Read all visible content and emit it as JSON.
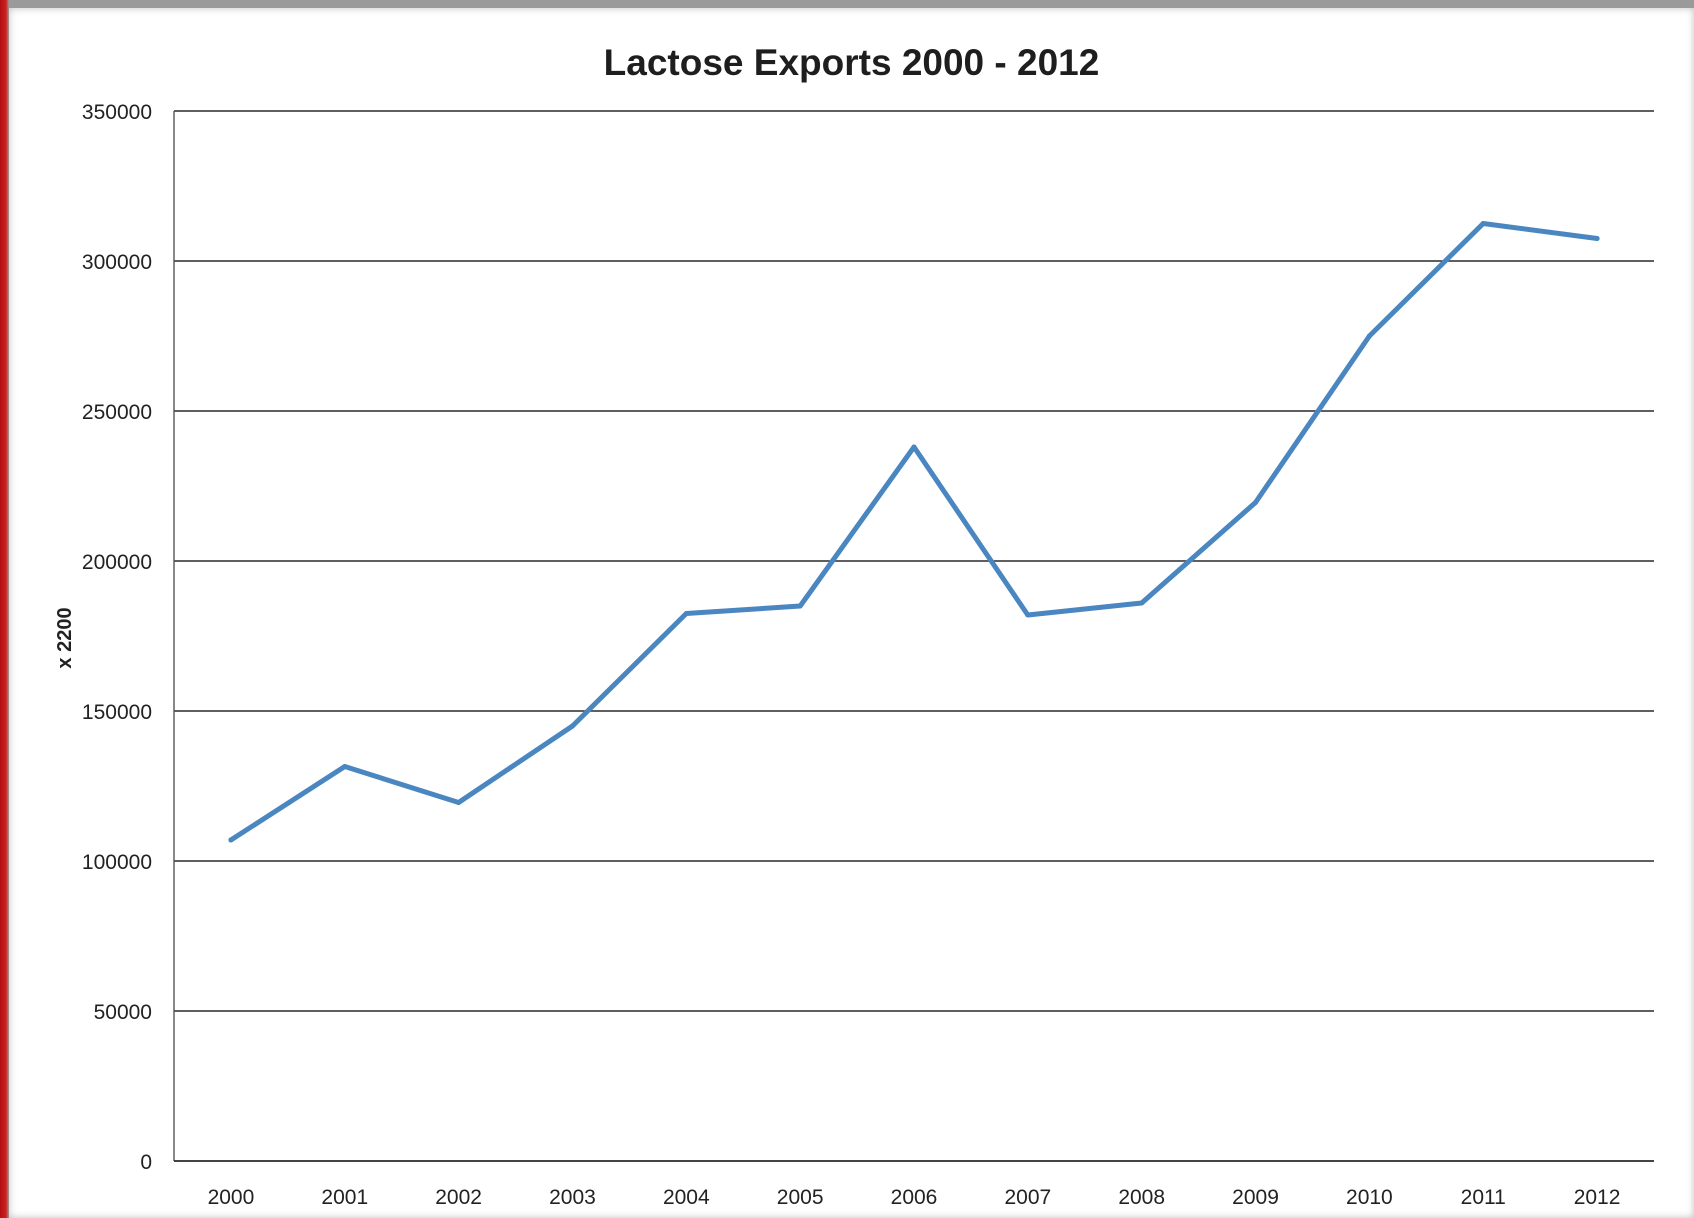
{
  "chart_data": {
    "type": "line",
    "title": "Lactose Exports 2000 - 2012",
    "xlabel": "",
    "ylabel": "x 2200",
    "ylim": [
      0,
      350000
    ],
    "yticks": [
      "0",
      "50000",
      "100000",
      "150000",
      "200000",
      "250000",
      "300000",
      "350000"
    ],
    "categories": [
      "2000",
      "2001",
      "2002",
      "2003",
      "2004",
      "2005",
      "2006",
      "2007",
      "2008",
      "2009",
      "2010",
      "2011",
      "2012"
    ],
    "series": [
      {
        "values": [
          107000,
          131500,
          119500,
          145000,
          182500,
          185000,
          238000,
          182000,
          186000,
          219500,
          275000,
          312500,
          307500
        ]
      }
    ],
    "line_color": "#4a86c0",
    "grid": true,
    "legend": "none"
  }
}
